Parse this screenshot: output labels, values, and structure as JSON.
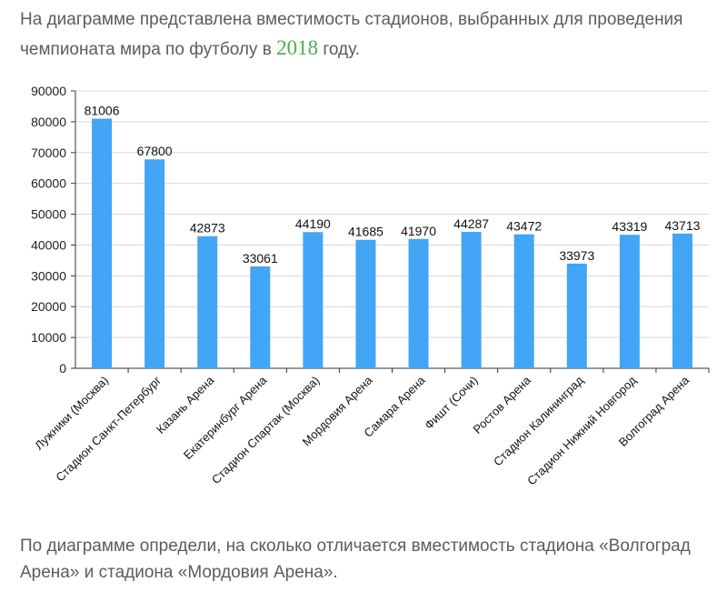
{
  "intro": {
    "before": "На диаграмме представлена вместимость стадионов, выбранных для проведения чемпионата мира по футболу в ",
    "year": "2018",
    "after": " году."
  },
  "question": "По диаграмме определи, на сколько  отличается вместимость стадиона «Волгоград Арена» и стадиона «Мордовия Арена».",
  "colors": {
    "bar": "#42a5f5",
    "grid": "#d9d9d9",
    "axis": "#333333",
    "year": "#4caf50"
  },
  "chart_data": {
    "type": "bar",
    "title": "",
    "xlabel": "",
    "ylabel": "",
    "ylim": [
      0,
      90000
    ],
    "yticks": [
      0,
      10000,
      20000,
      30000,
      40000,
      50000,
      60000,
      70000,
      80000,
      90000
    ],
    "grid": true,
    "categories": [
      "Лужники (Москва)",
      "Стадион Санкт-Петербург",
      "Казань Арена",
      "Екатеринбург Арена",
      "Стадион Спартак (Москва)",
      "Мордовия Арена",
      "Самара Арена",
      "Фишт (Сочи)",
      "Ростов Арена",
      "Стадион Калининград",
      "Стадион Нижний Новгород",
      "Волгоград Арена"
    ],
    "values": [
      81006,
      67800,
      42873,
      33061,
      44190,
      41685,
      41970,
      44287,
      43472,
      33973,
      43319,
      43713
    ]
  }
}
